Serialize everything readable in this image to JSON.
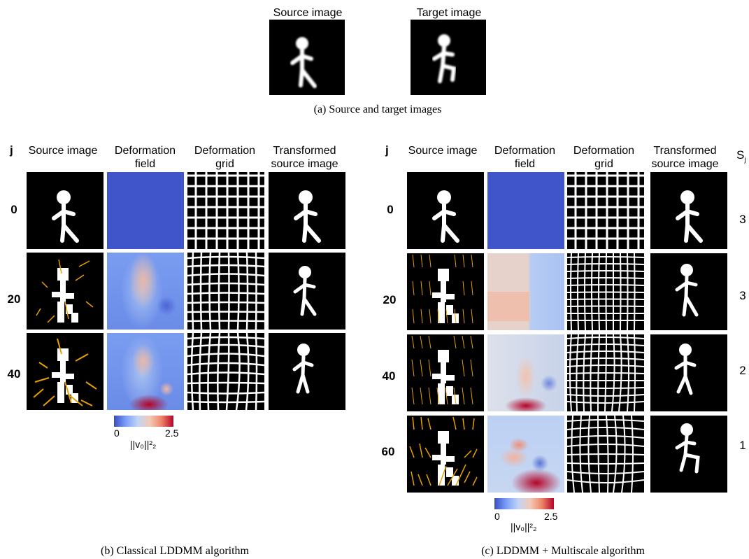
{
  "panel_a": {
    "source_label": "Source image",
    "target_label": "Target image",
    "caption": "(a) Source and target images"
  },
  "panel_b": {
    "j_header": "j",
    "col_source": "Source image",
    "col_field_line1": "Deformation",
    "col_field_line2": "field",
    "col_grid_line1": "Deformation",
    "col_grid_line2": "grid",
    "col_transformed_line1": "Transformed",
    "col_transformed_line2": "source image",
    "rows": [
      "0",
      "20",
      "40"
    ],
    "colorbar_min": "0",
    "colorbar_max": "2.5",
    "colorbar_label": "||v₀||²₂",
    "caption": "(b) Classical LDDMM algorithm"
  },
  "panel_c": {
    "j_header": "j",
    "col_source": "Source image",
    "col_field_line1": "Deformation",
    "col_field_line2": "field",
    "col_grid_line1": "Deformation",
    "col_grid_line2": "grid",
    "col_transformed_line1": "Transformed",
    "col_transformed_line2": "source image",
    "s_header": "S",
    "s_sub": "j",
    "rows": [
      "0",
      "20",
      "40",
      "60"
    ],
    "s_values": [
      "3",
      "3",
      "2",
      "1"
    ],
    "colorbar_min": "0",
    "colorbar_max": "2.5",
    "colorbar_label": "||v₀||²₂",
    "caption": "(c) LDDMM + Multiscale algorithm"
  },
  "colors": {
    "arrow": "#e8a000",
    "field_low": "#3b4cc0",
    "field_high": "#b40426"
  }
}
